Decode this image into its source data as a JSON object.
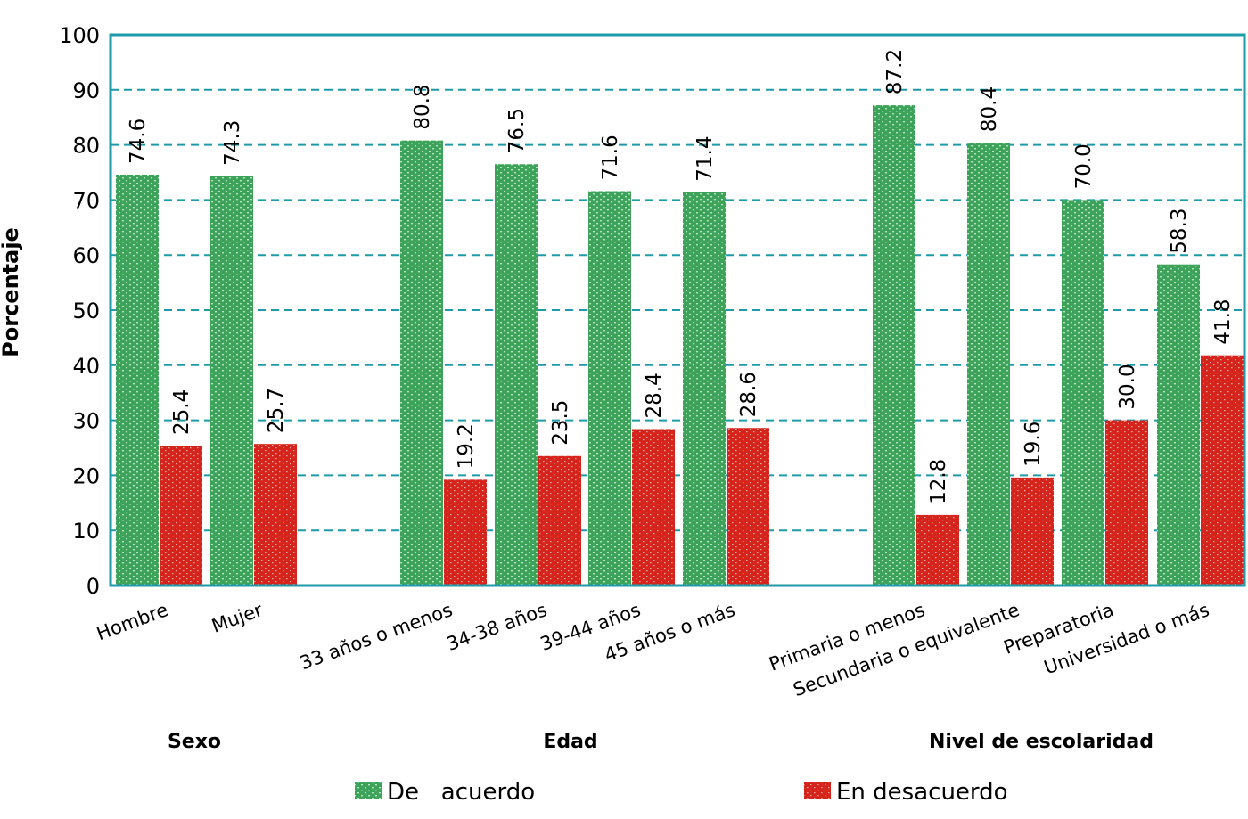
{
  "colors": {
    "agree": "#3da35a",
    "disagree": "#d4241c",
    "axis": "#1e9aa8",
    "grid": "#1e9aa8"
  },
  "chart_data": {
    "type": "bar",
    "ylabel": "Porcentaje",
    "ylim": [
      0,
      100
    ],
    "yticks": [
      "0",
      "10",
      "20",
      "30",
      "40",
      "50",
      "60",
      "70",
      "80",
      "90",
      "100"
    ],
    "grid": true,
    "legend_position": "bottom",
    "categories": [
      "Hombre",
      "Mujer",
      "33 años o menos",
      "34-38 años",
      "39-44 años",
      "45 años o más",
      "Primaria o menos",
      "Secundaria o equivalente",
      "Preparatoria",
      "Universidad o más"
    ],
    "groups": [
      {
        "label": "Sexo",
        "categories": [
          0,
          1
        ]
      },
      {
        "label": "Edad",
        "categories": [
          2,
          3,
          4,
          5
        ]
      },
      {
        "label": "Nivel de escolaridad",
        "categories": [
          6,
          7,
          8,
          9
        ]
      }
    ],
    "series": [
      {
        "name": "De   acuerdo",
        "values": [
          74.6,
          74.3,
          80.8,
          76.5,
          71.6,
          71.4,
          87.2,
          80.4,
          70.0,
          58.3
        ],
        "labels": [
          "74.6",
          "74.3",
          "80.8",
          "76.5",
          "71.6",
          "71.4",
          "87.2",
          "80.4",
          "70.0",
          "58.3"
        ]
      },
      {
        "name": "En desacuerdo",
        "values": [
          25.4,
          25.7,
          19.2,
          23.5,
          28.4,
          28.6,
          12.8,
          19.6,
          30.0,
          41.8
        ],
        "labels": [
          "25.4",
          "25.7",
          "19.2",
          "23.5",
          "28.4",
          "28.6",
          "12.8",
          "19.6",
          "30.0",
          "41.8"
        ]
      }
    ]
  }
}
